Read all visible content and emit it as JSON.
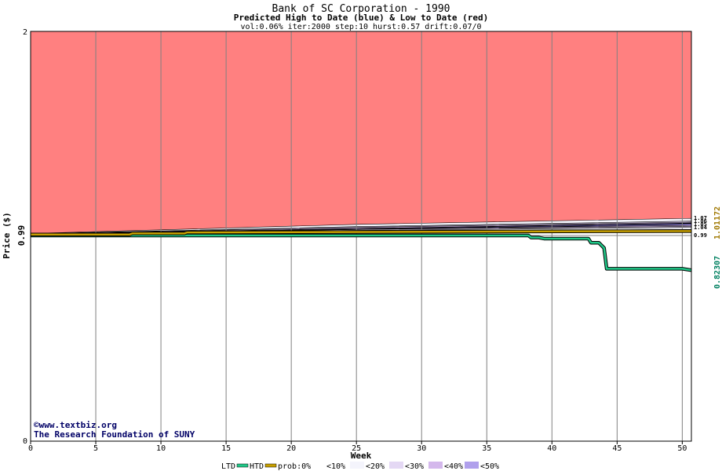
{
  "chart_data": {
    "type": "area",
    "title": "Bank of SC Corporation - 1990",
    "subtitle": "Predicted High to Date (blue) &  Low to Date (red)",
    "params": "vol:0.06% iter:2000 step:10 hurst:0.57 drift:0.07/0",
    "xlabel": "Week",
    "ylabel": "Price ($)",
    "xlim": [
      0,
      50.7
    ],
    "ylim": [
      0,
      2
    ],
    "xticks": [
      0,
      5,
      10,
      15,
      20,
      25,
      30,
      35,
      40,
      45,
      50
    ],
    "ytick_labels": [
      "2",
      "0.99",
      "0"
    ],
    "grid": true,
    "credits": [
      "©www.textbiz.org",
      "The Research Foundation of SUNY"
    ],
    "legend": {
      "placement": "bottom",
      "entries": [
        "LTD",
        "HTD",
        "prob:0%",
        "<10%",
        "<20%",
        "<30%",
        "<40%",
        "<50%"
      ],
      "colors": [
        "#ffffff",
        "#f4f4fc",
        "#e4d8f4",
        "#d4b8ec",
        "#b0a0ec",
        "#8070e4"
      ]
    },
    "right_labels": [
      "0.99",
      "0.82307",
      "1.01172"
    ],
    "upper_markers": [
      "1.07",
      "1.06",
      "1.05",
      "1.04"
    ],
    "colors": {
      "ltd": "#20c888",
      "htd": "#c8a000",
      "red": "#ff8080",
      "frame": "#000000"
    },
    "series": [
      {
        "name": "LTD",
        "x": [
          0,
          38.2,
          38.4,
          39,
          39.4,
          39.6,
          42.8,
          43,
          43.6,
          44,
          44.2,
          50,
          50.7
        ],
        "values": [
          0.99,
          0.99,
          0.98,
          0.98,
          0.975,
          0.975,
          0.975,
          0.955,
          0.955,
          0.93,
          0.83,
          0.83,
          0.823
        ]
      },
      {
        "name": "HTD",
        "x": [
          0,
          7.6,
          7.8,
          11.8,
          12,
          50.7
        ],
        "values": [
          0.995,
          0.995,
          1.0,
          1.0,
          1.005,
          1.012
        ]
      }
    ],
    "bands": [
      {
        "name": "<50%",
        "x": [
          0,
          25,
          50.7
        ],
        "lower": [
          0.995,
          1.02,
          1.045
        ],
        "upper": [
          0.996,
          1.022,
          1.05
        ]
      },
      {
        "name": "<40%",
        "x": [
          0,
          25,
          50.7
        ],
        "lower": [
          0.996,
          1.022,
          1.04
        ],
        "upper": [
          0.997,
          1.025,
          1.052
        ]
      },
      {
        "name": "<30%",
        "x": [
          0,
          25,
          50.7
        ],
        "lower": [
          0.996,
          1.02,
          1.035
        ],
        "upper": [
          0.998,
          1.03,
          1.056
        ]
      },
      {
        "name": "<20%",
        "x": [
          0,
          25,
          50.7
        ],
        "lower": [
          0.996,
          1.015,
          1.03
        ],
        "upper": [
          0.999,
          1.034,
          1.061
        ]
      },
      {
        "name": "<10%",
        "x": [
          0,
          25,
          50.7
        ],
        "lower": [
          0.995,
          1.01,
          1.02
        ],
        "upper": [
          1.0,
          1.045,
          1.075
        ]
      }
    ],
    "red_region": {
      "x": [
        0,
        25,
        50.7
      ],
      "lower": [
        1.0,
        1.045,
        1.075
      ],
      "upper": [
        2,
        2,
        2
      ]
    }
  }
}
